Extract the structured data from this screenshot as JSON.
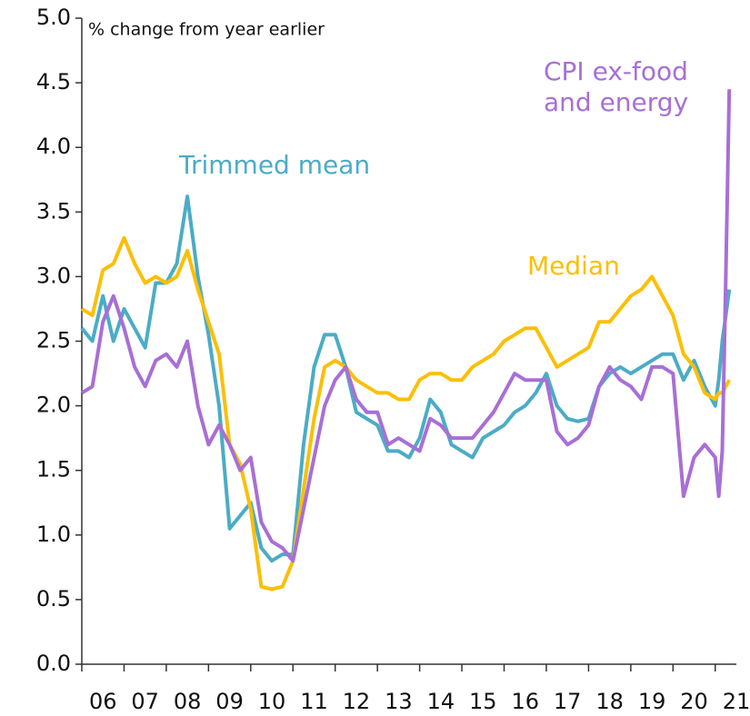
{
  "chart_data": {
    "type": "line",
    "ylabel": "% change from year earlier",
    "x": [
      6.0,
      6.25,
      6.5,
      6.75,
      7.0,
      7.25,
      7.5,
      7.75,
      8.0,
      8.25,
      8.5,
      8.75,
      9.0,
      9.25,
      9.5,
      9.75,
      10.0,
      10.25,
      10.5,
      10.75,
      11.0,
      11.25,
      11.5,
      11.75,
      12.0,
      12.25,
      12.5,
      12.75,
      13.0,
      13.25,
      13.5,
      13.75,
      14.0,
      14.25,
      14.5,
      14.75,
      15.0,
      15.25,
      15.5,
      15.75,
      16.0,
      16.25,
      16.5,
      16.75,
      17.0,
      17.25,
      17.5,
      17.75,
      18.0,
      18.25,
      18.5,
      18.75,
      19.0,
      19.25,
      19.5,
      19.75,
      20.0,
      20.25,
      20.5,
      20.75,
      21.0,
      21.083,
      21.167,
      21.25,
      21.333
    ],
    "series": [
      {
        "name": "Trimmed mean",
        "color": "#4bacc6",
        "values": [
          2.6,
          2.5,
          2.85,
          2.5,
          2.75,
          2.6,
          2.45,
          2.95,
          2.95,
          3.1,
          3.62,
          3.0,
          2.55,
          2.0,
          1.05,
          1.15,
          1.25,
          0.9,
          0.8,
          0.85,
          0.85,
          1.7,
          2.3,
          2.55,
          2.55,
          2.3,
          1.95,
          1.9,
          1.85,
          1.65,
          1.65,
          1.6,
          1.75,
          2.05,
          1.95,
          1.7,
          1.65,
          1.6,
          1.75,
          1.8,
          1.85,
          1.95,
          2.0,
          2.1,
          2.25,
          2.0,
          1.9,
          1.88,
          1.9,
          2.15,
          2.25,
          2.3,
          2.25,
          2.3,
          2.35,
          2.4,
          2.4,
          2.2,
          2.35,
          2.15,
          2.0,
          2.2,
          2.5,
          2.7,
          2.9
        ]
      },
      {
        "name": "Median",
        "color": "#fbbf06",
        "values": [
          2.75,
          2.7,
          3.05,
          3.1,
          3.3,
          3.1,
          2.95,
          3.0,
          2.95,
          3.0,
          3.2,
          2.9,
          2.65,
          2.4,
          1.7,
          1.55,
          1.2,
          0.6,
          0.58,
          0.6,
          0.8,
          1.35,
          1.9,
          2.3,
          2.35,
          2.3,
          2.2,
          2.15,
          2.1,
          2.1,
          2.05,
          2.05,
          2.2,
          2.25,
          2.25,
          2.2,
          2.2,
          2.3,
          2.35,
          2.4,
          2.5,
          2.55,
          2.6,
          2.6,
          2.45,
          2.3,
          2.35,
          2.4,
          2.45,
          2.65,
          2.65,
          2.75,
          2.85,
          2.9,
          3.0,
          2.85,
          2.7,
          2.4,
          2.3,
          2.1,
          2.05,
          2.1,
          2.1,
          2.15,
          2.2
        ]
      },
      {
        "name": "CPI ex-food and energy",
        "color": "#a86fd6",
        "values": [
          2.1,
          2.15,
          2.65,
          2.85,
          2.6,
          2.3,
          2.15,
          2.35,
          2.4,
          2.3,
          2.5,
          2.0,
          1.7,
          1.85,
          1.7,
          1.5,
          1.6,
          1.1,
          0.95,
          0.9,
          0.8,
          1.2,
          1.6,
          2.0,
          2.2,
          2.3,
          2.05,
          1.95,
          1.95,
          1.7,
          1.75,
          1.7,
          1.65,
          1.9,
          1.85,
          1.75,
          1.75,
          1.75,
          1.85,
          1.95,
          2.1,
          2.25,
          2.2,
          2.2,
          2.2,
          1.8,
          1.7,
          1.75,
          1.85,
          2.15,
          2.3,
          2.2,
          2.15,
          2.05,
          2.3,
          2.3,
          2.25,
          1.3,
          1.6,
          1.7,
          1.6,
          1.3,
          1.65,
          3.0,
          4.45
        ]
      }
    ],
    "xlim": [
      6,
      21.5
    ],
    "xticks": [
      {
        "value": 6,
        "label": "06"
      },
      {
        "value": 7,
        "label": "07"
      },
      {
        "value": 8,
        "label": "08"
      },
      {
        "value": 9,
        "label": "09"
      },
      {
        "value": 10,
        "label": "10"
      },
      {
        "value": 11,
        "label": "11"
      },
      {
        "value": 12,
        "label": "12"
      },
      {
        "value": 13,
        "label": "13"
      },
      {
        "value": 14,
        "label": "14"
      },
      {
        "value": 15,
        "label": "15"
      },
      {
        "value": 16,
        "label": "16"
      },
      {
        "value": 17,
        "label": "17"
      },
      {
        "value": 18,
        "label": "18"
      },
      {
        "value": 19,
        "label": "19"
      },
      {
        "value": 20,
        "label": "20"
      },
      {
        "value": 21,
        "label": "21"
      }
    ],
    "ylim": [
      0,
      5
    ],
    "yticks": [
      {
        "value": 0,
        "label": "0.0"
      },
      {
        "value": 0.5,
        "label": "0.5"
      },
      {
        "value": 1,
        "label": "1.0"
      },
      {
        "value": 1.5,
        "label": "1.5"
      },
      {
        "value": 2,
        "label": "2.0"
      },
      {
        "value": 2.5,
        "label": "2.5"
      },
      {
        "value": 3,
        "label": "3.0"
      },
      {
        "value": 3.5,
        "label": "3.5"
      },
      {
        "value": 4,
        "label": "4.0"
      },
      {
        "value": 4.5,
        "label": "4.5"
      },
      {
        "value": 5,
        "label": "5.0"
      }
    ],
    "grid": false
  }
}
